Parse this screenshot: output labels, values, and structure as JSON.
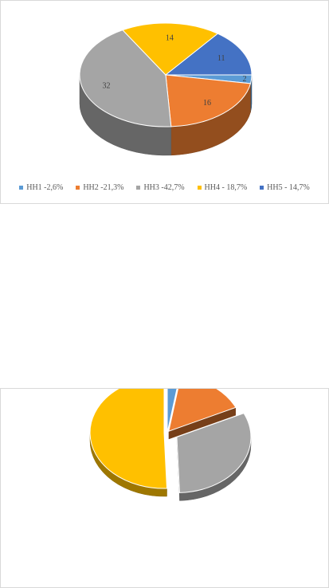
{
  "chart_data": [
    {
      "type": "pie",
      "style": "3d",
      "categories": [
        "HH1",
        "HH2",
        "HH3",
        "HH4",
        "HH5"
      ],
      "values": [
        2,
        16,
        32,
        14,
        11
      ],
      "data_labels": [
        "2",
        "16",
        "32",
        "14",
        "11"
      ],
      "legend": [
        "HH1 -2,6%",
        "HH2 -21,3%",
        "HH3 -42,7%",
        "HH4 - 18,7%",
        "HH5 - 14,7%"
      ],
      "legend_position": "bottom",
      "colors": [
        "#5B9BD5",
        "#ED7D31",
        "#A5A5A5",
        "#FFC000",
        "#4472C4"
      ]
    },
    {
      "type": "pie",
      "style": "3d exploded",
      "values": [
        2.6,
        15.4,
        31.4,
        50.6
      ],
      "colors": [
        "#5B9BD5",
        "#ED7D31",
        "#A5A5A5",
        "#FFC000"
      ]
    }
  ]
}
